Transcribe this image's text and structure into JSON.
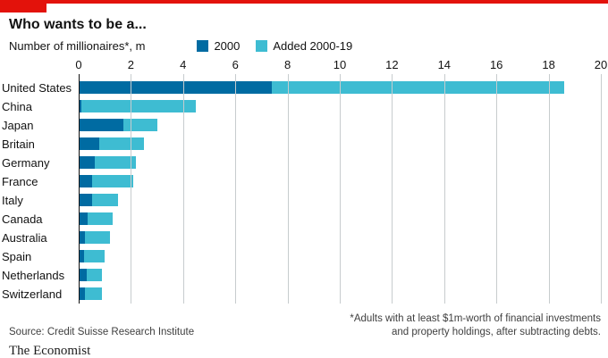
{
  "header": {
    "title": "Who wants to be a...",
    "subtitle": "Number of millionaires*, m"
  },
  "legend": [
    {
      "label": "2000",
      "color": "#006BA2"
    },
    {
      "label": "Added 2000-19",
      "color": "#3EBCD2"
    }
  ],
  "chart_data": {
    "type": "bar",
    "orientation": "horizontal",
    "stacked": true,
    "title": "Who wants to be a...",
    "subtitle": "Number of millionaires*, m",
    "categories": [
      "United States",
      "China",
      "Japan",
      "Britain",
      "Germany",
      "France",
      "Italy",
      "Canada",
      "Australia",
      "Spain",
      "Netherlands",
      "Switzerland"
    ],
    "series": [
      {
        "name": "2000",
        "color": "#006BA2",
        "values": [
          7.4,
          0.1,
          1.7,
          0.8,
          0.6,
          0.5,
          0.5,
          0.35,
          0.25,
          0.2,
          0.3,
          0.25
        ]
      },
      {
        "name": "Added 2000-19",
        "color": "#3EBCD2",
        "values": [
          11.2,
          4.4,
          1.3,
          1.7,
          1.6,
          1.6,
          1.0,
          0.95,
          0.95,
          0.8,
          0.6,
          0.65
        ]
      }
    ],
    "xlim": [
      0,
      20
    ],
    "xticks": [
      0,
      2,
      4,
      6,
      8,
      10,
      12,
      14,
      16,
      18,
      20
    ],
    "grid": "vertical",
    "legend_position": "top"
  },
  "footer": {
    "source": "Source: Credit Suisse Research Institute",
    "note_line1": "*Adults with at least $1m-worth of financial investments",
    "note_line2": "and property holdings, after subtracting debts.",
    "brand": "The Economist"
  },
  "colors": {
    "accent_red": "#E3120B",
    "series_2000": "#006BA2",
    "series_added": "#3EBCD2",
    "gridline": "#c7ccce"
  }
}
